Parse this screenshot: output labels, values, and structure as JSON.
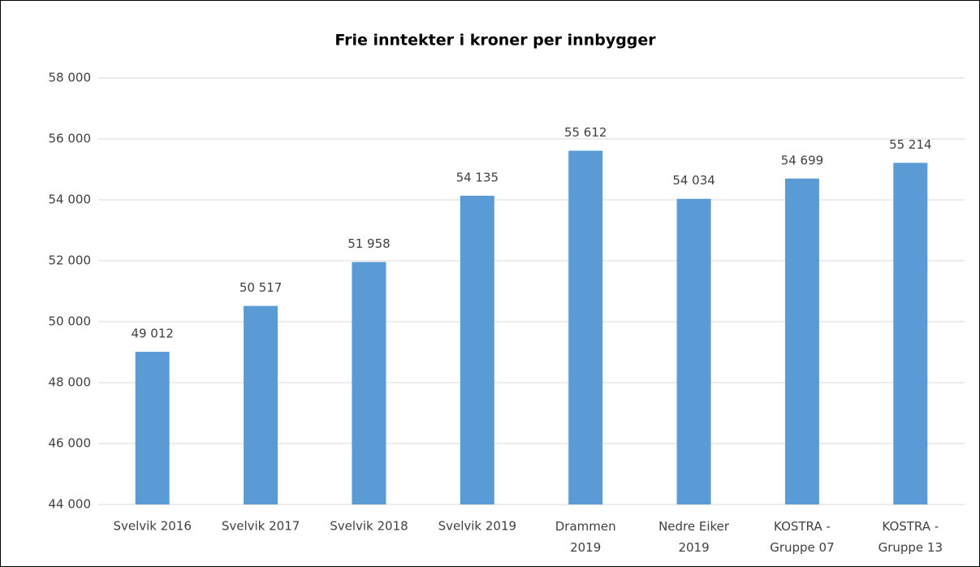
{
  "chart_data": {
    "type": "bar",
    "title": "Frie inntekter i kroner per innbygger",
    "categories": [
      "Svelvik 2016",
      "Svelvik 2017",
      "Svelvik 2018",
      "Svelvik 2019",
      "Drammen\n2019",
      "Nedre Eiker\n2019",
      "KOSTRA -\nGruppe 07",
      "KOSTRA -\nGruppe 13"
    ],
    "values": [
      49012,
      50517,
      51958,
      54135,
      55612,
      54034,
      54699,
      55214
    ],
    "value_labels": [
      "49 012",
      "50 517",
      "51 958",
      "54 135",
      "55 612",
      "54 034",
      "54 699",
      "55 214"
    ],
    "color": "#5b9bd5",
    "ylim": [
      44000,
      58000
    ],
    "yticks": [
      {
        "value": 44000,
        "label": "44 000"
      },
      {
        "value": 46000,
        "label": "46 000"
      },
      {
        "value": 48000,
        "label": "48 000"
      },
      {
        "value": 50000,
        "label": "50 000"
      },
      {
        "value": 52000,
        "label": "52 000"
      },
      {
        "value": 54000,
        "label": "54 000"
      },
      {
        "value": 56000,
        "label": "56 000"
      },
      {
        "value": 58000,
        "label": "58 000"
      }
    ],
    "grid": true
  }
}
